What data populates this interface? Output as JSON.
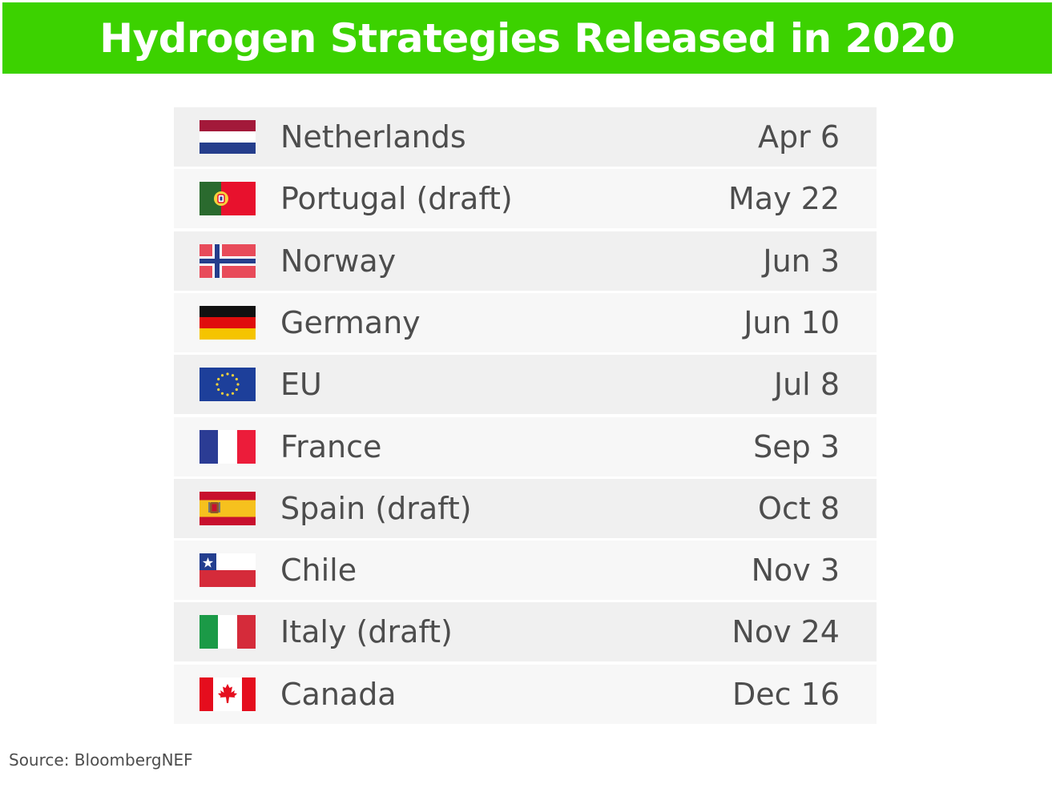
{
  "title": "Hydrogen Strategies Released in 2020",
  "source": "Source: BloombergNEF",
  "colors": {
    "banner": "#3cd200",
    "text": "#4d4d4d"
  },
  "chart_data": {
    "type": "table",
    "title": "Hydrogen Strategies Released in 2020",
    "columns": [
      "",
      "",
      ""
    ],
    "rows": [
      {
        "flag": "netherlands-flag",
        "country": "Netherlands",
        "date": "Apr 6"
      },
      {
        "flag": "portugal-flag",
        "country": "Portugal (draft)",
        "date": "May 22"
      },
      {
        "flag": "norway-flag",
        "country": "Norway",
        "date": "Jun 3"
      },
      {
        "flag": "germany-flag",
        "country": "Germany",
        "date": "Jun 10"
      },
      {
        "flag": "eu-flag",
        "country": "EU",
        "date": "Jul 8"
      },
      {
        "flag": "france-flag",
        "country": "France",
        "date": "Sep 3"
      },
      {
        "flag": "spain-flag",
        "country": "Spain (draft)",
        "date": "Oct 8"
      },
      {
        "flag": "chile-flag",
        "country": "Chile",
        "date": "Nov 3"
      },
      {
        "flag": "italy-flag",
        "country": "Italy (draft)",
        "date": "Nov 24"
      },
      {
        "flag": "canada-flag",
        "country": "Canada",
        "date": "Dec 16"
      }
    ]
  }
}
